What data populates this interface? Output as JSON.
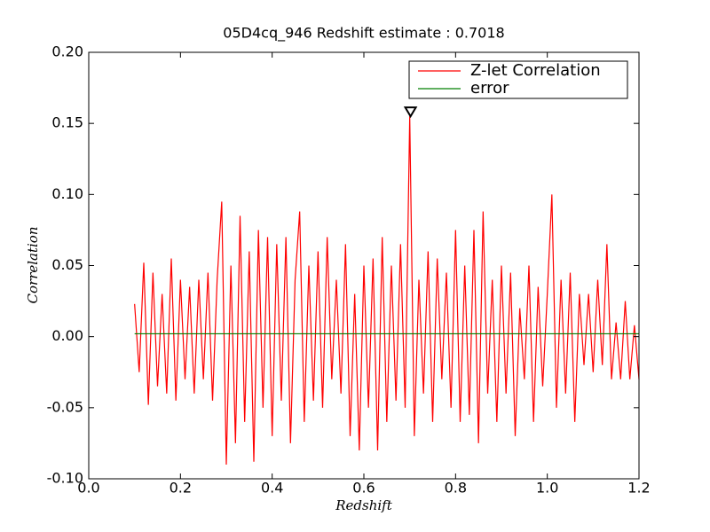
{
  "chart_data": {
    "type": "line",
    "title": "05D4cq_946 Redshift estimate : 0.7018",
    "xlabel": "Redshift",
    "ylabel": "Correlation",
    "xlim": [
      0,
      1.2
    ],
    "ylim": [
      -0.1,
      0.2
    ],
    "xticks": [
      {
        "value": 0,
        "label": "0.0"
      },
      0.2,
      0.4,
      0.6,
      0.8,
      {
        "value": 1,
        "label": "1.0"
      },
      1.2
    ],
    "yticks": [
      {
        "value": -0.1,
        "label": "-0.10"
      },
      -0.05,
      {
        "value": 0,
        "label": "0.00"
      },
      0.05,
      {
        "value": 0.1,
        "label": "0.10"
      },
      0.15,
      {
        "value": 0.2,
        "label": "0.20"
      }
    ],
    "legend": "upper right",
    "peak_marker": {
      "x": 0.7018,
      "y": 0.155
    },
    "x": [
      0.1,
      0.11,
      0.12,
      0.13,
      0.14,
      0.15,
      0.16,
      0.17,
      0.18,
      0.19,
      0.2,
      0.21,
      0.22,
      0.23,
      0.24,
      0.25,
      0.26,
      0.27,
      0.28,
      0.29,
      0.3,
      0.31,
      0.32,
      0.33,
      0.34,
      0.35,
      0.36,
      0.37,
      0.38,
      0.39,
      0.4,
      0.41,
      0.42,
      0.43,
      0.44,
      0.45,
      0.46,
      0.47,
      0.48,
      0.49,
      0.5,
      0.51,
      0.52,
      0.53,
      0.54,
      0.55,
      0.56,
      0.57,
      0.58,
      0.59,
      0.6,
      0.61,
      0.62,
      0.63,
      0.64,
      0.65,
      0.66,
      0.67,
      0.68,
      0.69,
      0.7,
      0.71,
      0.72,
      0.73,
      0.74,
      0.75,
      0.76,
      0.77,
      0.78,
      0.79,
      0.8,
      0.81,
      0.82,
      0.83,
      0.84,
      0.85,
      0.86,
      0.87,
      0.88,
      0.89,
      0.9,
      0.91,
      0.92,
      0.93,
      0.94,
      0.95,
      0.96,
      0.97,
      0.98,
      0.99,
      1.0,
      1.01,
      1.02,
      1.03,
      1.04,
      1.05,
      1.06,
      1.07,
      1.08,
      1.09,
      1.1,
      1.11,
      1.12,
      1.13,
      1.14,
      1.15,
      1.16,
      1.17,
      1.18,
      1.19,
      1.2
    ],
    "series": [
      {
        "name": "Z-let Correlation",
        "color": "#ff0000",
        "values": [
          0.023,
          -0.025,
          0.052,
          -0.048,
          0.045,
          -0.035,
          0.03,
          -0.04,
          0.055,
          -0.045,
          0.04,
          -0.03,
          0.035,
          -0.04,
          0.04,
          -0.03,
          0.045,
          -0.045,
          0.04,
          0.095,
          -0.09,
          0.05,
          -0.075,
          0.085,
          -0.06,
          0.06,
          -0.088,
          0.075,
          -0.05,
          0.07,
          -0.07,
          0.065,
          -0.045,
          0.07,
          -0.075,
          0.04,
          0.088,
          -0.06,
          0.05,
          -0.045,
          0.06,
          -0.05,
          0.07,
          -0.03,
          0.04,
          -0.04,
          0.065,
          -0.07,
          0.03,
          -0.08,
          0.05,
          -0.05,
          0.055,
          -0.08,
          0.07,
          -0.06,
          0.05,
          -0.045,
          0.065,
          -0.05,
          0.155,
          -0.07,
          0.04,
          -0.04,
          0.06,
          -0.06,
          0.055,
          -0.03,
          0.045,
          -0.05,
          0.075,
          -0.06,
          0.05,
          -0.055,
          0.075,
          -0.075,
          0.088,
          -0.04,
          0.04,
          -0.06,
          0.05,
          -0.04,
          0.045,
          -0.07,
          0.02,
          -0.03,
          0.05,
          -0.06,
          0.035,
          -0.035,
          0.03,
          0.1,
          -0.05,
          0.04,
          -0.04,
          0.045,
          -0.06,
          0.03,
          -0.02,
          0.03,
          -0.025,
          0.04,
          -0.02,
          0.065,
          -0.03,
          0.01,
          -0.03,
          0.025,
          -0.03,
          0.008,
          -0.03
        ]
      },
      {
        "name": "error",
        "color": "#007f00",
        "x": [
          0.1,
          1.2
        ],
        "values": [
          0.002,
          0.002
        ]
      }
    ]
  }
}
